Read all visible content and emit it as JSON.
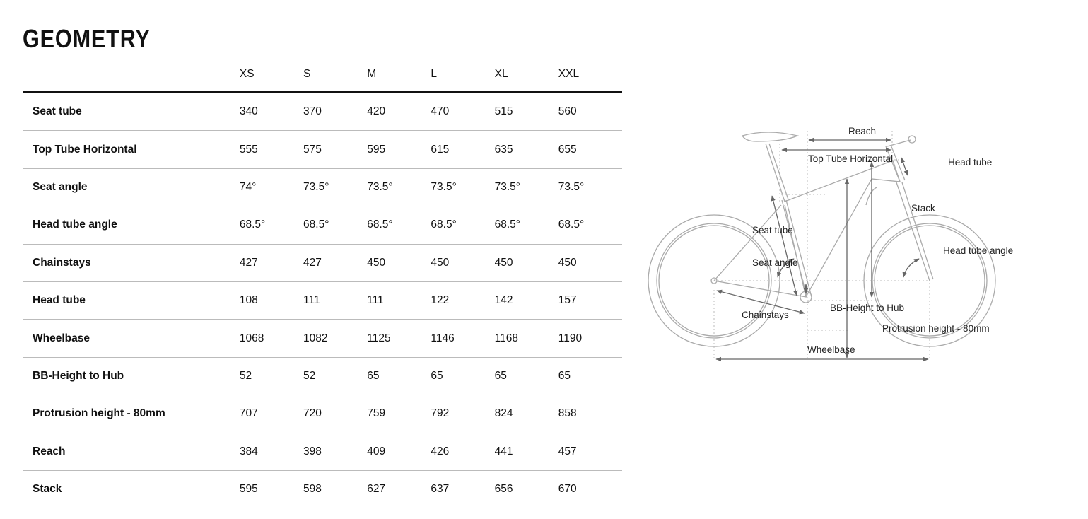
{
  "title": "GEOMETRY",
  "sizes": [
    "XS",
    "S",
    "M",
    "L",
    "XL",
    "XXL"
  ],
  "rows": [
    {
      "label": "Seat tube",
      "values": [
        "340",
        "370",
        "420",
        "470",
        "515",
        "560"
      ]
    },
    {
      "label": "Top Tube Horizontal",
      "values": [
        "555",
        "575",
        "595",
        "615",
        "635",
        "655"
      ]
    },
    {
      "label": "Seat angle",
      "values": [
        "74°",
        "73.5°",
        "73.5°",
        "73.5°",
        "73.5°",
        "73.5°"
      ]
    },
    {
      "label": "Head tube angle",
      "values": [
        "68.5°",
        "68.5°",
        "68.5°",
        "68.5°",
        "68.5°",
        "68.5°"
      ]
    },
    {
      "label": "Chainstays",
      "values": [
        "427",
        "427",
        "450",
        "450",
        "450",
        "450"
      ]
    },
    {
      "label": "Head tube",
      "values": [
        "108",
        "111",
        "111",
        "122",
        "142",
        "157"
      ]
    },
    {
      "label": "Wheelbase",
      "values": [
        "1068",
        "1082",
        "1125",
        "1146",
        "1168",
        "1190"
      ]
    },
    {
      "label": "BB-Height to Hub",
      "values": [
        "52",
        "52",
        "65",
        "65",
        "65",
        "65"
      ]
    },
    {
      "label": "Protrusion height - 80mm",
      "values": [
        "707",
        "720",
        "759",
        "792",
        "824",
        "858"
      ]
    },
    {
      "label": "Reach",
      "values": [
        "384",
        "398",
        "409",
        "426",
        "441",
        "457"
      ]
    },
    {
      "label": "Stack",
      "values": [
        "595",
        "598",
        "627",
        "637",
        "656",
        "670"
      ]
    }
  ],
  "diagram": {
    "reach": "Reach",
    "top_tube": "Top Tube Horizontal",
    "head_tube": "Head tube",
    "stack": "Stack",
    "seat_tube": "Seat tube",
    "head_tube_angle": "Head tube angle",
    "seat_angle": "Seat angle",
    "bb_height": "BB-Height to Hub",
    "chainstays": "Chainstays",
    "protrusion": "Protrusion height - 80mm",
    "wheelbase": "Wheelbase"
  }
}
